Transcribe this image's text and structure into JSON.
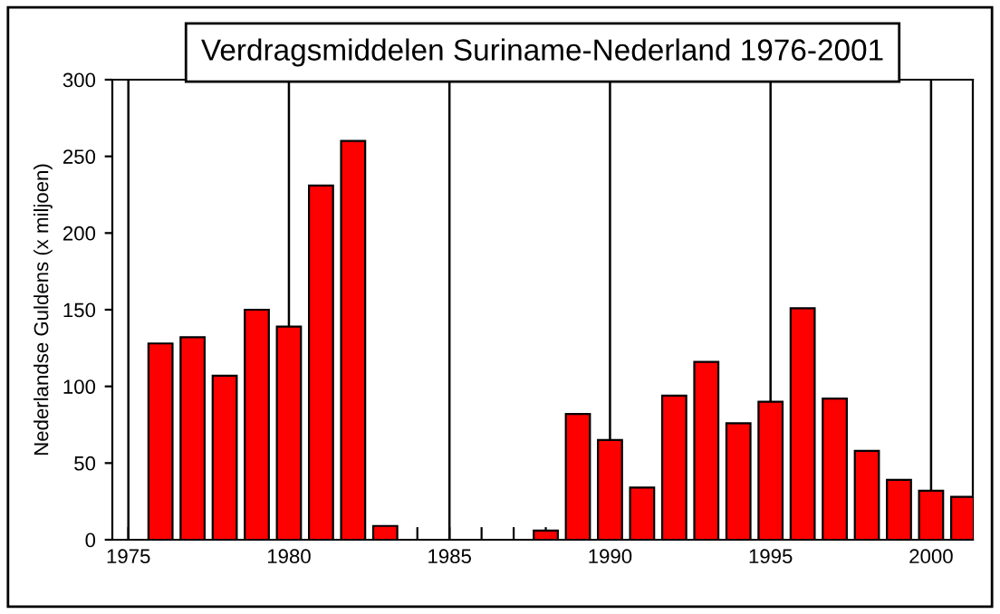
{
  "chart_data": {
    "type": "bar",
    "title": "Verdragsmiddelen Suriname-Nederland 1976-2001",
    "ylabel": "Nederlandse Guldens (x miljoen)",
    "x": [
      1976,
      1977,
      1978,
      1979,
      1980,
      1981,
      1982,
      1983,
      1984,
      1985,
      1986,
      1987,
      1988,
      1989,
      1990,
      1991,
      1992,
      1993,
      1994,
      1995,
      1996,
      1997,
      1998,
      1999,
      2000,
      2001
    ],
    "values": [
      128,
      132,
      107,
      150,
      139,
      231,
      260,
      9,
      null,
      null,
      null,
      null,
      6,
      82,
      65,
      34,
      94,
      116,
      76,
      90,
      151,
      92,
      58,
      39,
      32,
      28
    ],
    "color": "#ff0000",
    "xlim": [
      1974.5,
      2001.3
    ],
    "ylim": [
      0,
      300
    ],
    "xticks": [
      1975,
      {
        "value": 1976,
        "label": null
      },
      {
        "value": 1977,
        "label": null
      },
      {
        "value": 1978,
        "label": null
      },
      {
        "value": 1979,
        "label": null
      },
      1980,
      {
        "value": 1981,
        "label": null
      },
      {
        "value": 1982,
        "label": null
      },
      {
        "value": 1983,
        "label": null
      },
      {
        "value": 1984,
        "label": null
      },
      1985,
      {
        "value": 1986,
        "label": null
      },
      {
        "value": 1987,
        "label": null
      },
      {
        "value": 1988,
        "label": null
      },
      {
        "value": 1989,
        "label": null
      },
      1990,
      {
        "value": 1991,
        "label": null
      },
      {
        "value": 1992,
        "label": null
      },
      {
        "value": 1993,
        "label": null
      },
      {
        "value": 1994,
        "label": null
      },
      1995,
      {
        "value": 1996,
        "label": null
      },
      {
        "value": 1997,
        "label": null
      },
      {
        "value": 1998,
        "label": null
      },
      {
        "value": 1999,
        "label": null
      },
      2000,
      {
        "value": 2001,
        "label": null
      }
    ],
    "yticks": [
      0,
      50,
      100,
      150,
      200,
      250,
      300
    ],
    "grid": "x"
  }
}
